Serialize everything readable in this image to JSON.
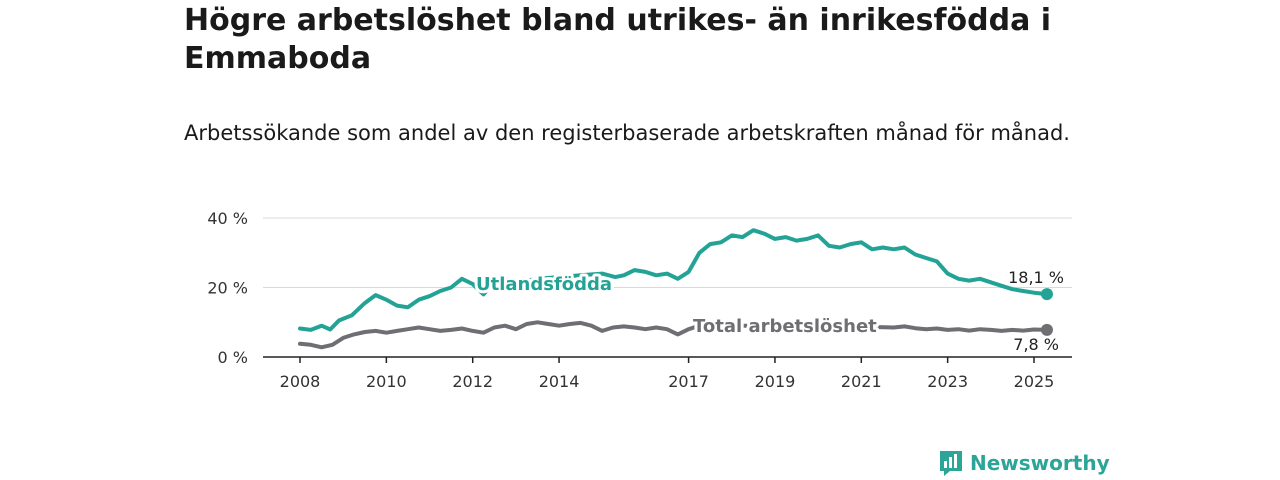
{
  "header": {
    "title": "Högre arbetslöshet bland utrikes- än inrikesfödda i Emmaboda",
    "subtitle": "Arbetssökande som andel av den registerbaserade arbetskraften månad för månad."
  },
  "brand": {
    "name": "Newsworthy",
    "icon": "bar-chart-logo-icon",
    "color": "#2aa597"
  },
  "chart_data": {
    "type": "line",
    "title": "Högre arbetslöshet bland utrikes- än inrikesfödda i Emmaboda",
    "subtitle": "Arbetssökande som andel av den registerbaserade arbetskraften månad för månad.",
    "xlabel": "",
    "ylabel": "",
    "xlim": [
      2008.0,
      2025.3
    ],
    "ylim": [
      0,
      40
    ],
    "grid": true,
    "y_ticks": [
      {
        "value": 0,
        "label": "0 %"
      },
      {
        "value": 20,
        "label": "20 %"
      },
      {
        "value": 40,
        "label": "40 %"
      }
    ],
    "x_ticks": [
      {
        "value": 2008,
        "label": "2008"
      },
      {
        "value": 2010,
        "label": "2010"
      },
      {
        "value": 2012,
        "label": "2012"
      },
      {
        "value": 2014,
        "label": "2014"
      },
      {
        "value": 2017,
        "label": "2017"
      },
      {
        "value": 2019,
        "label": "2019"
      },
      {
        "value": 2021,
        "label": "2021"
      },
      {
        "value": 2023,
        "label": "2023"
      },
      {
        "value": 2025,
        "label": "2025"
      }
    ],
    "series": [
      {
        "name": "Utlandsfödda",
        "color": "#23a396",
        "end_label": "18,1 %",
        "points": [
          [
            2008.0,
            8.2
          ],
          [
            2008.25,
            7.8
          ],
          [
            2008.5,
            9.0
          ],
          [
            2008.7,
            7.9
          ],
          [
            2008.9,
            10.5
          ],
          [
            2009.2,
            12.0
          ],
          [
            2009.5,
            15.5
          ],
          [
            2009.75,
            17.8
          ],
          [
            2010.0,
            16.5
          ],
          [
            2010.25,
            14.8
          ],
          [
            2010.5,
            14.3
          ],
          [
            2010.75,
            16.5
          ],
          [
            2011.0,
            17.5
          ],
          [
            2011.25,
            19.0
          ],
          [
            2011.5,
            20.0
          ],
          [
            2011.75,
            22.5
          ],
          [
            2012.0,
            21.0
          ],
          [
            2012.25,
            18.0
          ],
          [
            2012.5,
            21.5
          ],
          [
            2012.75,
            21.8
          ],
          [
            2013.0,
            21.5
          ],
          [
            2013.5,
            22.5
          ],
          [
            2014.0,
            23.0
          ],
          [
            2014.5,
            23.5
          ],
          [
            2015.0,
            24.0
          ],
          [
            2015.3,
            23.0
          ],
          [
            2015.5,
            23.5
          ],
          [
            2015.75,
            25.0
          ],
          [
            2016.0,
            24.5
          ],
          [
            2016.25,
            23.5
          ],
          [
            2016.5,
            24.0
          ],
          [
            2016.75,
            22.5
          ],
          [
            2017.0,
            24.5
          ],
          [
            2017.25,
            30.0
          ],
          [
            2017.5,
            32.5
          ],
          [
            2017.75,
            33.0
          ],
          [
            2018.0,
            35.0
          ],
          [
            2018.25,
            34.5
          ],
          [
            2018.5,
            36.5
          ],
          [
            2018.75,
            35.5
          ],
          [
            2019.0,
            34.0
          ],
          [
            2019.25,
            34.5
          ],
          [
            2019.5,
            33.5
          ],
          [
            2019.75,
            34.0
          ],
          [
            2020.0,
            35.0
          ],
          [
            2020.25,
            32.0
          ],
          [
            2020.5,
            31.5
          ],
          [
            2020.75,
            32.5
          ],
          [
            2021.0,
            33.0
          ],
          [
            2021.25,
            31.0
          ],
          [
            2021.5,
            31.5
          ],
          [
            2021.75,
            31.0
          ],
          [
            2022.0,
            31.5
          ],
          [
            2022.25,
            29.5
          ],
          [
            2022.5,
            28.5
          ],
          [
            2022.75,
            27.5
          ],
          [
            2023.0,
            24.0
          ],
          [
            2023.25,
            22.5
          ],
          [
            2023.5,
            22.0
          ],
          [
            2023.75,
            22.5
          ],
          [
            2024.0,
            21.5
          ],
          [
            2024.25,
            20.5
          ],
          [
            2024.5,
            19.5
          ],
          [
            2024.75,
            19.0
          ],
          [
            2025.0,
            18.5
          ],
          [
            2025.3,
            18.1
          ]
        ]
      },
      {
        "name": "Total arbetslöshet",
        "color": "#6e6e73",
        "end_label": "7,8 %",
        "points": [
          [
            2008.0,
            3.8
          ],
          [
            2008.25,
            3.5
          ],
          [
            2008.5,
            2.8
          ],
          [
            2008.75,
            3.5
          ],
          [
            2009.0,
            5.5
          ],
          [
            2009.25,
            6.5
          ],
          [
            2009.5,
            7.2
          ],
          [
            2009.75,
            7.5
          ],
          [
            2010.0,
            7.0
          ],
          [
            2010.25,
            7.5
          ],
          [
            2010.5,
            8.0
          ],
          [
            2010.75,
            8.5
          ],
          [
            2011.0,
            8.0
          ],
          [
            2011.25,
            7.5
          ],
          [
            2011.5,
            7.8
          ],
          [
            2011.75,
            8.2
          ],
          [
            2012.0,
            7.5
          ],
          [
            2012.25,
            7.0
          ],
          [
            2012.5,
            8.5
          ],
          [
            2012.75,
            9.0
          ],
          [
            2013.0,
            8.0
          ],
          [
            2013.25,
            9.5
          ],
          [
            2013.5,
            10.0
          ],
          [
            2013.75,
            9.5
          ],
          [
            2014.0,
            9.0
          ],
          [
            2014.25,
            9.5
          ],
          [
            2014.5,
            9.8
          ],
          [
            2014.75,
            9.0
          ],
          [
            2015.0,
            7.5
          ],
          [
            2015.25,
            8.5
          ],
          [
            2015.5,
            8.8
          ],
          [
            2015.75,
            8.5
          ],
          [
            2016.0,
            8.0
          ],
          [
            2016.25,
            8.5
          ],
          [
            2016.5,
            8.0
          ],
          [
            2016.75,
            6.5
          ],
          [
            2017.0,
            8.0
          ],
          [
            2017.25,
            9.0
          ],
          [
            2017.5,
            9.2
          ],
          [
            2017.75,
            9.0
          ],
          [
            2018.0,
            9.0
          ],
          [
            2019.0,
            9.0
          ],
          [
            2020.0,
            8.8
          ],
          [
            2021.0,
            8.7
          ],
          [
            2021.75,
            8.5
          ],
          [
            2022.0,
            8.8
          ],
          [
            2022.25,
            8.3
          ],
          [
            2022.5,
            8.0
          ],
          [
            2022.75,
            8.2
          ],
          [
            2023.0,
            7.8
          ],
          [
            2023.25,
            8.0
          ],
          [
            2023.5,
            7.6
          ],
          [
            2023.75,
            8.0
          ],
          [
            2024.0,
            7.8
          ],
          [
            2024.25,
            7.5
          ],
          [
            2024.5,
            7.8
          ],
          [
            2024.75,
            7.6
          ],
          [
            2025.0,
            7.9
          ],
          [
            2025.3,
            7.8
          ]
        ]
      }
    ]
  }
}
